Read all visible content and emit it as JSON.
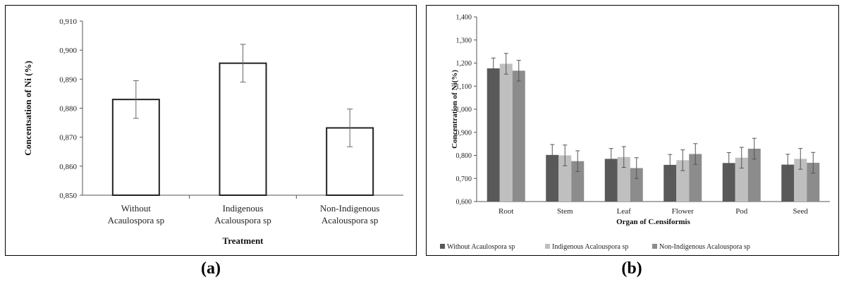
{
  "chart_data": [
    {
      "type": "bar",
      "panel_label": "(a)",
      "title": "",
      "xlabel": "Treatment",
      "ylabel": "Concentsation of Ni (%)",
      "ylim": [
        0.85,
        0.91
      ],
      "y_ticks": [
        "0,850",
        "0,860",
        "0,870",
        "0,880",
        "0,890",
        "0,900",
        "0,910"
      ],
      "categories": [
        [
          "Without",
          "Acaulospora sp"
        ],
        [
          "Indigenous",
          "Acalouspora sp"
        ],
        [
          "Non-Indigenous",
          "Acalouspora sp"
        ]
      ],
      "values": [
        0.883,
        0.8955,
        0.8732
      ],
      "errors": [
        0.0065,
        0.0065,
        0.0065
      ],
      "grid": false,
      "bar_color": "#ffffff",
      "bar_edge": "#222222"
    },
    {
      "type": "bar",
      "panel_label": "(b)",
      "title": "",
      "xlabel": "Organ of C.ensiformis",
      "ylabel": "Concentration of Ni(%)",
      "ylim": [
        0.6,
        1.4
      ],
      "y_ticks": [
        "0,600",
        "0,700",
        "0,800",
        "0,900",
        "1,000",
        "1,100",
        "1,200",
        "1,300",
        "1,400"
      ],
      "categories": [
        "Root",
        "Stem",
        "Leaf",
        "Flower",
        "Pod",
        "Seed"
      ],
      "series": [
        {
          "name": "Without Acaulospora sp",
          "values": [
            1.177,
            0.802,
            0.785,
            0.759,
            0.767,
            0.76
          ],
          "color": "#595959"
        },
        {
          "name": "Indigenous Acalouspora sp",
          "values": [
            1.197,
            0.8,
            0.793,
            0.779,
            0.79,
            0.785
          ],
          "color": "#bfbfbf"
        },
        {
          "name": "Non-Indigenous  Acalouspora sp",
          "values": [
            1.167,
            0.775,
            0.745,
            0.806,
            0.829,
            0.768
          ],
          "color": "#8c8c8c"
        }
      ],
      "error": 0.045,
      "legend_position": "bottom",
      "grid": false
    }
  ]
}
